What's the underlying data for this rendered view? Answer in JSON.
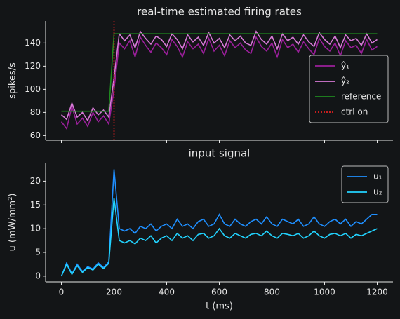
{
  "chart_data": [
    {
      "type": "line",
      "title": "real-time estimated firing rates",
      "y_label": "spikes/s",
      "x": [
        0,
        20,
        40,
        60,
        80,
        100,
        120,
        140,
        160,
        180,
        200,
        220,
        240,
        260,
        280,
        300,
        320,
        340,
        360,
        380,
        400,
        420,
        440,
        460,
        480,
        500,
        520,
        540,
        560,
        580,
        600,
        620,
        640,
        660,
        680,
        700,
        720,
        740,
        760,
        780,
        800,
        820,
        840,
        860,
        880,
        900,
        920,
        940,
        960,
        980,
        1000,
        1020,
        1040,
        1060,
        1080,
        1100,
        1120,
        1140,
        1160,
        1180,
        1200
      ],
      "series": [
        {
          "name": "ŷ₁",
          "color": "#9b1f9b",
          "values": [
            72,
            66,
            85,
            70,
            75,
            68,
            80,
            72,
            77,
            70,
            100,
            140,
            135,
            142,
            128,
            145,
            138,
            132,
            140,
            136,
            130,
            143,
            137,
            128,
            141,
            135,
            139,
            131,
            144,
            133,
            138,
            129,
            142,
            136,
            140,
            134,
            131,
            145,
            137,
            133,
            140,
            128,
            143,
            136,
            139,
            132,
            141,
            135,
            130,
            144,
            137,
            133,
            140,
            129,
            142,
            136,
            138,
            131,
            143,
            134,
            137
          ]
        },
        {
          "name": "ŷ₂",
          "color": "#d77ad7",
          "values": [
            78,
            74,
            88,
            76,
            80,
            73,
            84,
            78,
            82,
            76,
            110,
            148,
            142,
            147,
            136,
            150,
            144,
            139,
            146,
            143,
            137,
            148,
            143,
            135,
            147,
            141,
            145,
            138,
            149,
            140,
            144,
            136,
            147,
            142,
            146,
            140,
            138,
            150,
            143,
            139,
            146,
            135,
            148,
            142,
            145,
            139,
            147,
            141,
            137,
            149,
            143,
            139,
            146,
            136,
            147,
            142,
            144,
            138,
            148,
            140,
            143
          ]
        },
        {
          "name": "reference",
          "color": "#1f8a1f",
          "values": [
            81,
            81,
            81,
            81,
            81,
            81,
            81,
            81,
            81,
            81,
            148,
            148,
            148,
            148,
            148,
            148,
            148,
            148,
            148,
            148,
            148,
            148,
            148,
            148,
            148,
            148,
            148,
            148,
            148,
            148,
            148,
            148,
            148,
            148,
            148,
            148,
            148,
            148,
            148,
            148,
            148,
            148,
            148,
            148,
            148,
            148,
            148,
            148,
            148,
            148,
            148,
            148,
            148,
            148,
            148,
            148,
            148,
            148,
            148,
            148,
            148
          ]
        }
      ],
      "vlines": [
        {
          "name": "ctrl on",
          "x": 200,
          "color": "#e02020"
        }
      ],
      "xlim": [
        -60,
        1260
      ],
      "xticks": [
        0,
        200,
        400,
        600,
        800,
        1000,
        1200
      ],
      "xtick_labels": false,
      "ylim": [
        56,
        159
      ],
      "yticks": [
        60,
        80,
        100,
        120,
        140
      ],
      "legend": "center right"
    },
    {
      "type": "line",
      "title": "input signal",
      "x_label": "t (ms)",
      "y_label": "u (mW/mm²)",
      "x": [
        0,
        20,
        40,
        60,
        80,
        100,
        120,
        140,
        160,
        180,
        200,
        220,
        240,
        260,
        280,
        300,
        320,
        340,
        360,
        380,
        400,
        420,
        440,
        460,
        480,
        500,
        520,
        540,
        560,
        580,
        600,
        620,
        640,
        660,
        680,
        700,
        720,
        740,
        760,
        780,
        800,
        820,
        840,
        860,
        880,
        900,
        920,
        940,
        960,
        980,
        1000,
        1020,
        1040,
        1060,
        1080,
        1100,
        1120,
        1140,
        1160,
        1180,
        1200
      ],
      "series": [
        {
          "name": "u₁",
          "color": "#1f8fff",
          "values": [
            0,
            2.8,
            0.5,
            2.5,
            1,
            2,
            1.5,
            2.8,
            1.8,
            3,
            22.5,
            10,
            9.5,
            10,
            9,
            10.5,
            10,
            11,
            9.5,
            10.5,
            11,
            10,
            12,
            10.5,
            11,
            10,
            11.5,
            12,
            10.5,
            11,
            13,
            11,
            10.5,
            12,
            11,
            10.5,
            11.5,
            12,
            11,
            12.5,
            11,
            10.5,
            12,
            11.5,
            11,
            12,
            10.5,
            11,
            12.5,
            11,
            10.5,
            11.5,
            12,
            11,
            12,
            10.5,
            11.5,
            11,
            12,
            13,
            13
          ]
        },
        {
          "name": "u₂",
          "color": "#22d3ff",
          "values": [
            0,
            2.5,
            0.4,
            2.2,
            0.8,
            1.8,
            1.3,
            2.5,
            1.6,
            2.7,
            16.5,
            7.5,
            7,
            7.5,
            6.8,
            8,
            7.5,
            8.5,
            7,
            8,
            8.5,
            7.5,
            9,
            8,
            8.5,
            7.5,
            8.8,
            9,
            8,
            8.5,
            10,
            8.5,
            8,
            9,
            8.5,
            8,
            8.8,
            9,
            8.5,
            9.5,
            8.5,
            8,
            9,
            8.8,
            8.5,
            9,
            8,
            8.5,
            9.5,
            8.5,
            8,
            8.8,
            9,
            8.5,
            9,
            8,
            8.8,
            8.5,
            9,
            9.5,
            10
          ]
        }
      ],
      "xlim": [
        -60,
        1260
      ],
      "xticks": [
        0,
        200,
        400,
        600,
        800,
        1000,
        1200
      ],
      "xtick_labels": true,
      "ylim": [
        -1.2,
        23.9
      ],
      "yticks": [
        0,
        5,
        10,
        15,
        20
      ],
      "legend": "upper right"
    }
  ]
}
